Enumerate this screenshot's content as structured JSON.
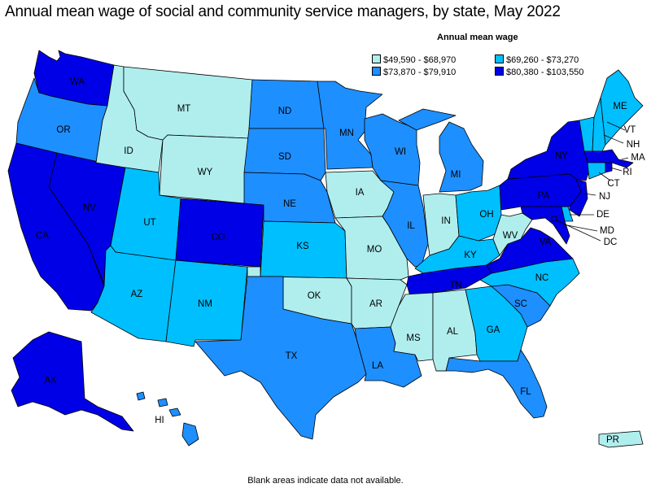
{
  "title": "Annual mean wage of social and community service managers, by state, May 2022",
  "legend": {
    "title": "Annual mean wage",
    "bins": [
      {
        "label": "$49,590 - $68,970",
        "color": "#b0eeee"
      },
      {
        "label": "$69,260 - $73,270",
        "color": "#00bfff"
      },
      {
        "label": "$73,870 - $79,910",
        "color": "#1e8fff"
      },
      {
        "label": "$80,380 - $103,550",
        "color": "#0000e6"
      }
    ]
  },
  "states": {
    "WA": 3,
    "OR": 2,
    "CA": 3,
    "NV": 3,
    "ID": 0,
    "MT": 0,
    "WY": 0,
    "UT": 1,
    "AZ": 1,
    "CO": 3,
    "NM": 1,
    "ND": 2,
    "SD": 2,
    "NE": 2,
    "KS": 1,
    "OK": 0,
    "TX": 2,
    "MN": 2,
    "IA": 0,
    "MO": 0,
    "AR": 0,
    "LA": 2,
    "WI": 2,
    "IL": 2,
    "MI": 2,
    "IN": 0,
    "OH": 1,
    "KY": 1,
    "TN": 3,
    "MS": 0,
    "AL": 0,
    "GA": 1,
    "FL": 2,
    "SC": 2,
    "NC": 1,
    "VA": 3,
    "WV": 0,
    "PA": 3,
    "NY": 3,
    "VT": 1,
    "NH": 1,
    "ME": 1,
    "MA": 3,
    "RI": 3,
    "CT": 1,
    "NJ": 3,
    "DE": 1,
    "MD": 3,
    "DC": 3,
    "AK": 3,
    "HI": 2,
    "PR": 0
  },
  "footnote": "Blank areas indicate data not available."
}
